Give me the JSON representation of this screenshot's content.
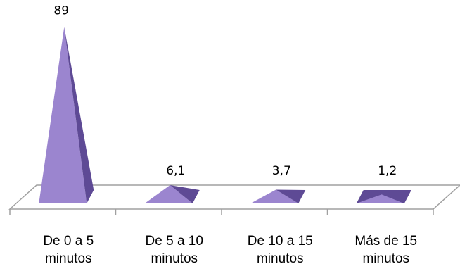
{
  "chart_data": {
    "type": "bar",
    "style": "3d-pyramid",
    "categories": [
      "De 0 a 5 minutos",
      "De 5 a 10 minutos",
      "De 10 a 15 minutos",
      "Más de 15 minutos"
    ],
    "category_lines": [
      [
        "De 0 a 5",
        "minutos"
      ],
      [
        "De 5 a 10",
        "minutos"
      ],
      [
        "De 10 a 15",
        "minutos"
      ],
      [
        "Más de 15",
        "minutos"
      ]
    ],
    "values": [
      89,
      6.1,
      3.7,
      1.2
    ],
    "value_labels": [
      "89",
      "6,1",
      "3,7",
      "1,2"
    ],
    "title": "",
    "xlabel": "",
    "ylabel": "",
    "ylim": [
      0,
      89
    ],
    "grid": false,
    "legend": "none",
    "colors": {
      "front": "#9B85CF",
      "side": "#5E4A95",
      "floor_stroke": "#A0A0A0"
    }
  }
}
